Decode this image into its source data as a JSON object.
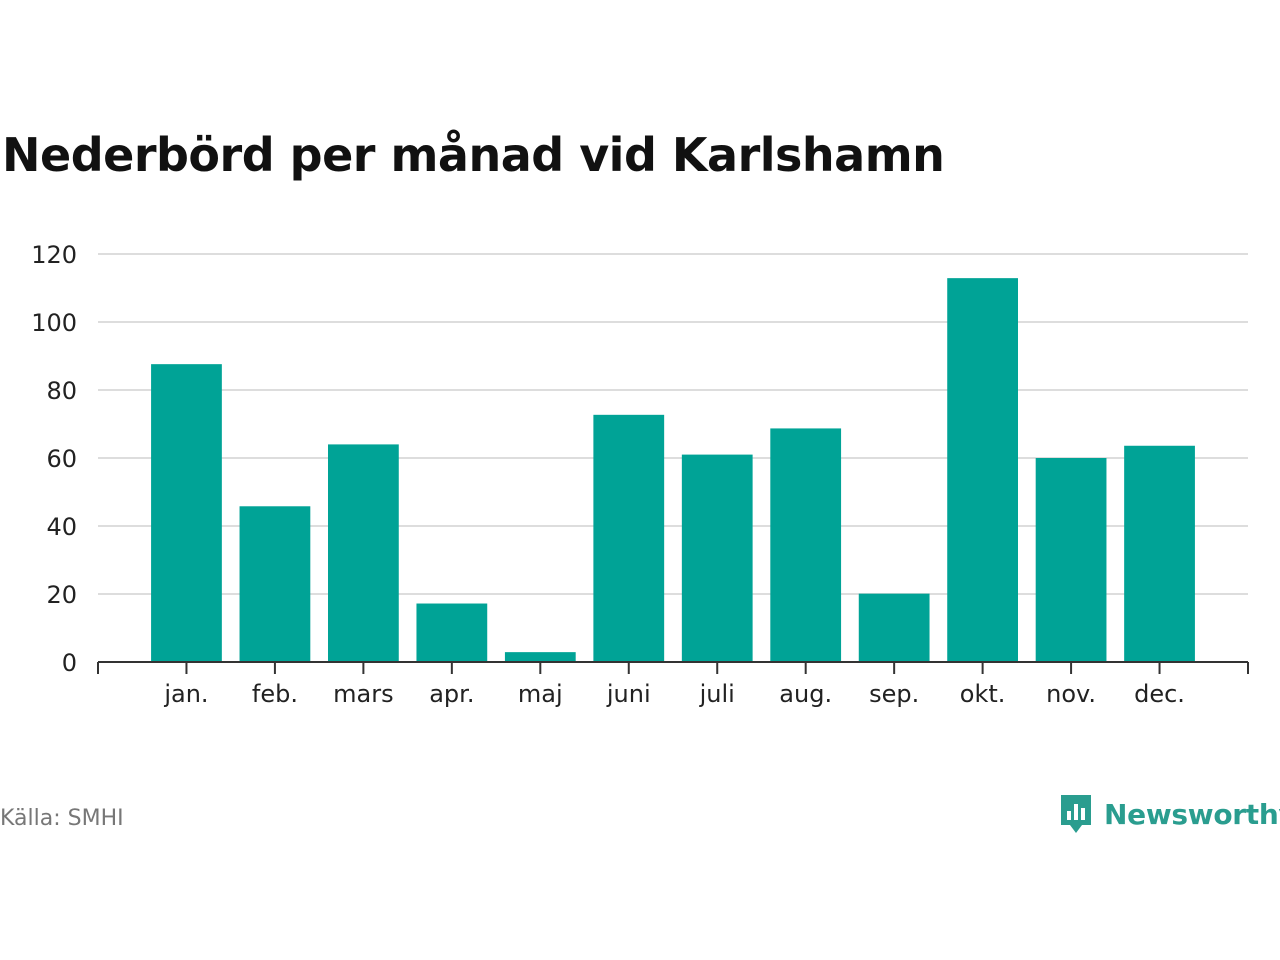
{
  "title": "Nederbörd per månad vid Karlshamn",
  "source": "Källa: SMHI",
  "brand": {
    "name": "Newsworthy",
    "icon": "newsworthy-logo-icon",
    "color": "#2a9d8f"
  },
  "colors": {
    "bar": "#00a396",
    "grid": "#dddddd",
    "axis": "#333333"
  },
  "chart_data": {
    "type": "bar",
    "title": "Nederbörd per månad vid Karlshamn",
    "categories": [
      "jan.",
      "feb.",
      "mars",
      "apr.",
      "maj",
      "juni",
      "juli",
      "aug.",
      "sep.",
      "okt.",
      "nov.",
      "dec."
    ],
    "values": [
      87.6,
      45.8,
      64.0,
      17.2,
      2.9,
      72.7,
      61.0,
      68.7,
      20.1,
      112.9,
      60.0,
      63.6
    ],
    "yticks": [
      0,
      20,
      40,
      60,
      80,
      100,
      120
    ],
    "ylim": [
      0,
      120
    ],
    "xlabel": "",
    "ylabel": "",
    "grid": true,
    "legend": "none"
  }
}
